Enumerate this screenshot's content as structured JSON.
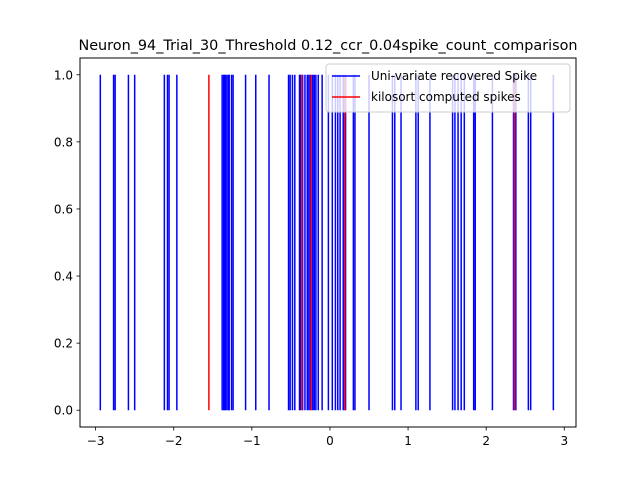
{
  "chart_data": {
    "type": "eventplot",
    "title": "Neuron_94_Trial_30_Threshold 0.12_ccr_0.04spike_count_comparison",
    "xlabel": "",
    "ylabel": "",
    "xlim": [
      -3.2,
      3.15
    ],
    "ylim": [
      -0.05,
      1.05
    ],
    "xticks": [
      -3,
      -2,
      -1,
      0,
      1,
      2,
      3
    ],
    "yticks": [
      0.0,
      0.2,
      0.4,
      0.6,
      0.8,
      1.0
    ],
    "xtick_labels": [
      "−3",
      "−2",
      "−1",
      "0",
      "1",
      "2",
      "3"
    ],
    "ytick_labels": [
      "0.0",
      "0.2",
      "0.4",
      "0.6",
      "0.8",
      "1.0"
    ],
    "legend_position": "top-right",
    "series": [
      {
        "name": "Uni-variate recovered Spike",
        "color": "#0000ff",
        "y_low": 0.0,
        "y_high": 1.0,
        "x": [
          -2.94,
          -2.77,
          -2.75,
          -2.58,
          -2.5,
          -2.12,
          -2.08,
          -2.06,
          -1.96,
          -1.38,
          -1.36,
          -1.35,
          -1.34,
          -1.32,
          -1.3,
          -1.29,
          -1.26,
          -1.24,
          -1.08,
          -0.95,
          -0.78,
          -0.53,
          -0.51,
          -0.48,
          -0.45,
          -0.39,
          -0.38,
          -0.35,
          -0.32,
          -0.29,
          -0.27,
          -0.25,
          -0.22,
          -0.2,
          -0.18,
          -0.15,
          -0.1,
          -0.02,
          0.03,
          0.07,
          0.1,
          0.13,
          0.17,
          0.2,
          0.3,
          0.32,
          0.5,
          0.8,
          0.83,
          0.91,
          1.1,
          1.13,
          1.28,
          1.57,
          1.6,
          1.64,
          1.68,
          1.72,
          1.84,
          1.86,
          2.08,
          2.35,
          2.38,
          2.54,
          2.57,
          2.86
        ]
      },
      {
        "name": "kilosort computed spikes",
        "color": "#ff0000",
        "y_low": 0.0,
        "y_high": 1.0,
        "x": [
          -1.55,
          -0.36,
          -0.24,
          0.19,
          2.36
        ]
      }
    ]
  }
}
